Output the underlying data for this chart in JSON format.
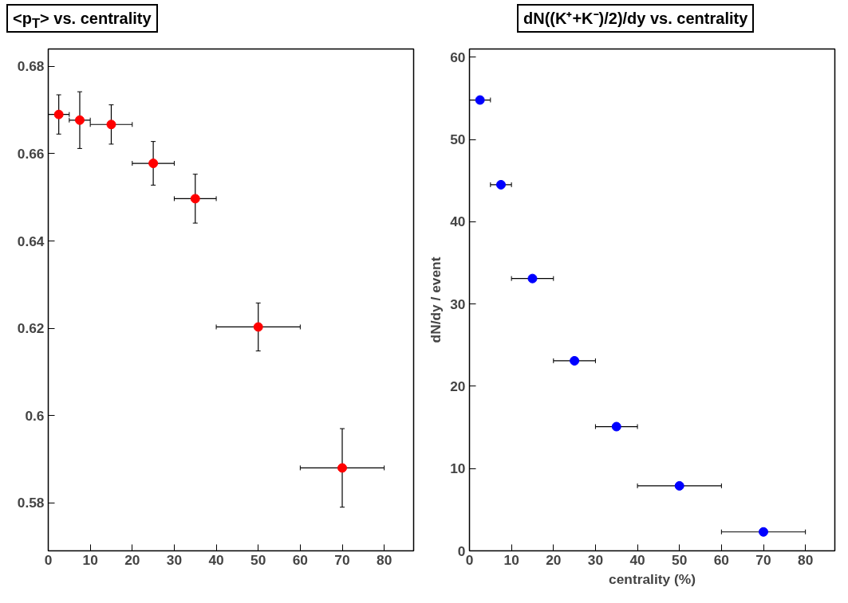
{
  "chart_data": [
    {
      "type": "scatter",
      "title": "<p$_{T}$> vs. centrality",
      "marker": "circle",
      "xlim": [
        0,
        87
      ],
      "xticks": [
        0,
        10,
        20,
        30,
        40,
        50,
        60,
        70,
        80
      ],
      "ylim": [
        0.569,
        0.684
      ],
      "yticks": [
        0.58,
        0.6,
        0.62,
        0.64,
        0.66,
        0.68
      ],
      "series": [
        {
          "color": "#ff0000",
          "x": [
            2.5,
            7.5,
            15,
            25,
            35,
            50,
            70
          ],
          "values": [
            0.669,
            0.6677,
            0.6667,
            0.6578,
            0.6497,
            0.6203,
            0.588
          ],
          "errors": [
            0.0045,
            0.0065,
            0.0045,
            0.005,
            0.0056,
            0.0055,
            0.009
          ],
          "xerrors": [
            2.5,
            2.5,
            5,
            5,
            5,
            10,
            10
          ]
        }
      ]
    },
    {
      "type": "scatter",
      "title": "dN((K⁺+K⁻)/2)/dy vs. centrality",
      "xlabel": "centrality (%)",
      "ylabel": "dN/dy / event",
      "marker": "circle",
      "xlim": [
        0,
        87
      ],
      "xticks": [
        0,
        10,
        20,
        30,
        40,
        50,
        60,
        70,
        80
      ],
      "ylim": [
        0,
        61
      ],
      "yticks": [
        0,
        10,
        20,
        30,
        40,
        50,
        60
      ],
      "series": [
        {
          "color": "#0000ff",
          "x": [
            2.5,
            7.5,
            15,
            25,
            35,
            50,
            70
          ],
          "values": [
            54.8,
            44.5,
            33.1,
            23.1,
            15.1,
            7.9,
            2.3
          ],
          "xerrors": [
            2.5,
            2.5,
            5,
            5,
            5,
            10,
            10
          ]
        }
      ]
    }
  ]
}
